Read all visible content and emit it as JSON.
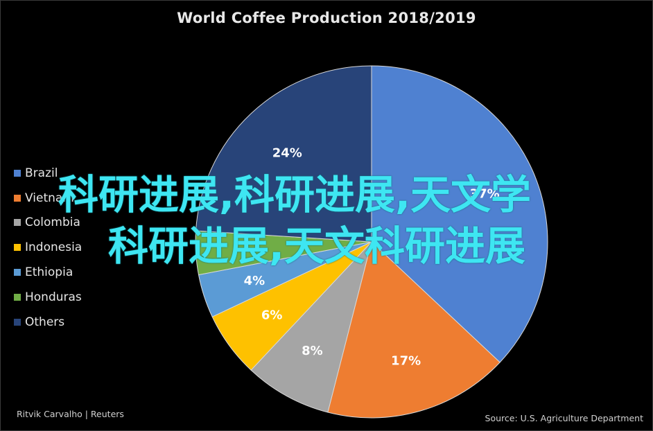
{
  "chart_data": {
    "type": "pie",
    "title": "World Coffee Production 2018/2019",
    "categories": [
      "Brazil",
      "Vietnam",
      "Colombia",
      "Indonesia",
      "Ethiopia",
      "Honduras",
      "Others"
    ],
    "values": [
      37,
      17,
      8,
      6,
      4,
      4,
      24
    ],
    "value_labels": [
      "37%",
      "17%",
      "8%",
      "6%",
      "4%",
      "",
      "24%"
    ],
    "colors": [
      "#4f81d1",
      "#ee7d31",
      "#a5a5a5",
      "#fec100",
      "#5b9bd5",
      "#70ad46",
      "#284479"
    ],
    "legend_position": "left"
  },
  "credit": "Ritvik Carvalho | Reuters",
  "source": "Source: U.S. Agriculture Department",
  "overlay": {
    "line1": "科研进展,科研进展,天文学",
    "line2": "科研进展,天文科研进展"
  }
}
